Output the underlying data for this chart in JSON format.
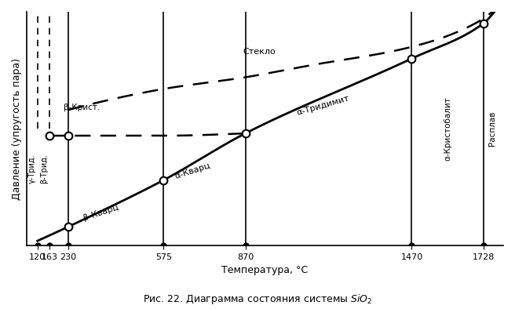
{
  "title": "Рис. 22. Диаграмма состояния системы $SiO_2$",
  "xlabel": "Температура, °C",
  "ylabel": "Давление (упругость пара)",
  "transitions": [
    120,
    163,
    230,
    575,
    870,
    1470,
    1728
  ],
  "x_min": 80,
  "x_max": 1800,
  "y_min": 0.0,
  "y_max": 1.0,
  "bg_color": "#ffffff"
}
